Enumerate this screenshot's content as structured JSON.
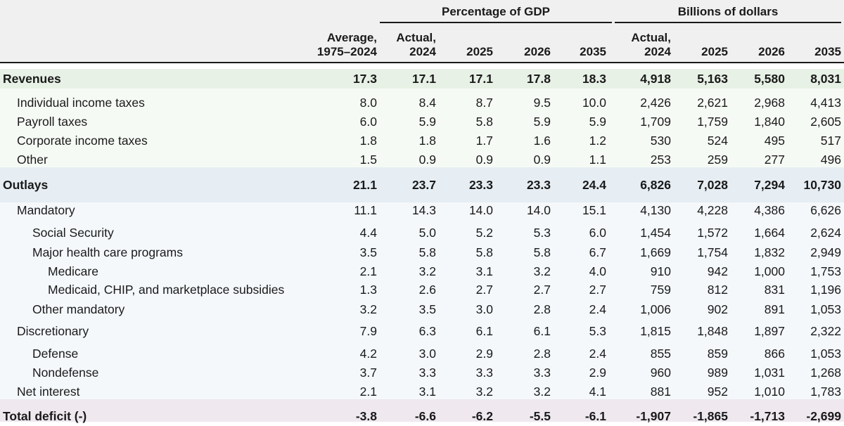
{
  "groups": {
    "pct": "Percentage of GDP",
    "bil": "Billions of dollars"
  },
  "columns": [
    {
      "lines": [
        "Average,",
        "1975–2024"
      ]
    },
    {
      "lines": [
        "Actual,",
        "2024"
      ]
    },
    {
      "lines": [
        "2025"
      ]
    },
    {
      "lines": [
        "2026"
      ]
    },
    {
      "lines": [
        "2035"
      ]
    },
    {
      "lines": [
        "Actual,",
        "2024"
      ]
    },
    {
      "lines": [
        "2025"
      ]
    },
    {
      "lines": [
        "2026"
      ]
    },
    {
      "lines": [
        "2035"
      ]
    }
  ],
  "rows": [
    {
      "label": "Revenues",
      "level": 0,
      "bold": true,
      "values": [
        "17.3",
        "17.1",
        "17.1",
        "17.8",
        "18.3",
        "4,918",
        "5,163",
        "5,580",
        "8,031"
      ]
    },
    {
      "label": "Individual income taxes",
      "level": 1,
      "bold": false,
      "values": [
        "8.0",
        "8.4",
        "8.7",
        "9.5",
        "10.0",
        "2,426",
        "2,621",
        "2,968",
        "4,413"
      ]
    },
    {
      "label": "Payroll taxes",
      "level": 1,
      "bold": false,
      "values": [
        "6.0",
        "5.9",
        "5.8",
        "5.9",
        "5.9",
        "1,709",
        "1,759",
        "1,840",
        "2,605"
      ]
    },
    {
      "label": "Corporate income taxes",
      "level": 1,
      "bold": false,
      "values": [
        "1.8",
        "1.8",
        "1.7",
        "1.6",
        "1.2",
        "530",
        "524",
        "495",
        "517"
      ]
    },
    {
      "label": "Other",
      "level": 1,
      "bold": false,
      "values": [
        "1.5",
        "0.9",
        "0.9",
        "0.9",
        "1.1",
        "253",
        "259",
        "277",
        "496"
      ]
    },
    {
      "label": "Outlays",
      "level": 0,
      "bold": true,
      "values": [
        "21.1",
        "23.7",
        "23.3",
        "23.3",
        "24.4",
        "6,826",
        "7,028",
        "7,294",
        "10,730"
      ]
    },
    {
      "label": "Mandatory",
      "level": 1,
      "bold": false,
      "values": [
        "11.1",
        "14.3",
        "14.0",
        "14.0",
        "15.1",
        "4,130",
        "4,228",
        "4,386",
        "6,626"
      ]
    },
    {
      "label": "Social Security",
      "level": 2,
      "bold": false,
      "values": [
        "4.4",
        "5.0",
        "5.2",
        "5.3",
        "6.0",
        "1,454",
        "1,572",
        "1,664",
        "2,624"
      ]
    },
    {
      "label": "Major health care programs",
      "level": 2,
      "bold": false,
      "values": [
        "3.5",
        "5.8",
        "5.8",
        "5.8",
        "6.7",
        "1,669",
        "1,754",
        "1,832",
        "2,949"
      ]
    },
    {
      "label": "Medicare",
      "level": 3,
      "bold": false,
      "values": [
        "2.1",
        "3.2",
        "3.1",
        "3.2",
        "4.0",
        "910",
        "942",
        "1,000",
        "1,753"
      ]
    },
    {
      "label": "Medicaid, CHIP, and marketplace subsidies",
      "level": 3,
      "bold": false,
      "values": [
        "1.3",
        "2.6",
        "2.7",
        "2.7",
        "2.7",
        "759",
        "812",
        "831",
        "1,196"
      ]
    },
    {
      "label": "Other mandatory",
      "level": 2,
      "bold": false,
      "values": [
        "3.2",
        "3.5",
        "3.0",
        "2.8",
        "2.4",
        "1,006",
        "902",
        "891",
        "1,053"
      ]
    },
    {
      "label": "Discretionary",
      "level": 1,
      "bold": false,
      "values": [
        "7.9",
        "6.3",
        "6.1",
        "6.1",
        "5.3",
        "1,815",
        "1,848",
        "1,897",
        "2,322"
      ]
    },
    {
      "label": "Defense",
      "level": 2,
      "bold": false,
      "values": [
        "4.2",
        "3.0",
        "2.9",
        "2.8",
        "2.4",
        "855",
        "859",
        "866",
        "1,053"
      ]
    },
    {
      "label": "Nondefense",
      "level": 2,
      "bold": false,
      "values": [
        "3.7",
        "3.3",
        "3.3",
        "3.3",
        "2.9",
        "960",
        "989",
        "1,031",
        "1,268"
      ]
    },
    {
      "label": "Net interest",
      "level": 1,
      "bold": false,
      "values": [
        "2.1",
        "3.1",
        "3.2",
        "3.2",
        "4.1",
        "881",
        "952",
        "1,010",
        "1,783"
      ]
    },
    {
      "label": "Total deficit (-)",
      "level": 0,
      "bold": true,
      "values": [
        "-3.8",
        "-6.6",
        "-6.2",
        "-5.5",
        "-6.1",
        "-1,907",
        "-1,865",
        "-1,713",
        "-2,699"
      ]
    }
  ],
  "colors": {
    "header_bg": "#f0f0f0",
    "revenues_bg": "#e7f1e5",
    "outlays_bg": "#e6eef4",
    "deficit_bg": "#efe9ef",
    "rule": "#1a1a1a"
  }
}
